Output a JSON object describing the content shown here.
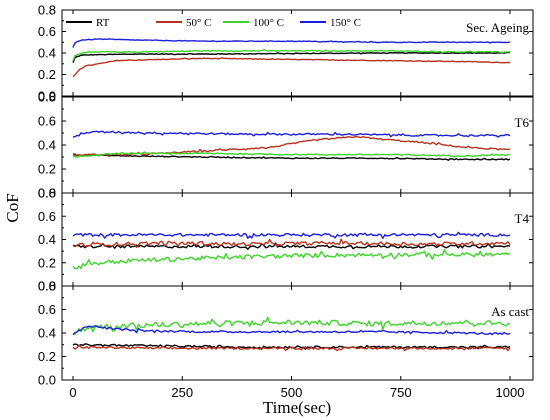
{
  "chart_data": {
    "type": "line",
    "xlabel": "Time(sec)",
    "ylabel": "CoF",
    "xlim": [
      0,
      1000
    ],
    "ylim": [
      0,
      0.8
    ],
    "x_ticks": [
      "0",
      "250",
      "500",
      "750",
      "1000"
    ],
    "y_ticks": [
      "0.0",
      "0.2",
      "0.4",
      "0.6",
      "0.8"
    ],
    "legend": {
      "placement": "top-left",
      "entries": [
        {
          "name": "RT",
          "color": "#000000"
        },
        {
          "name": "50° C",
          "color": "#b5331f"
        },
        {
          "name": "100° C",
          "color": "#3ed42a"
        },
        {
          "name": "150° C",
          "color": "#1c1fd8"
        }
      ]
    },
    "panels": [
      {
        "label": "Sec. Ageing",
        "series": [
          {
            "name": "RT",
            "color": "#000000",
            "noise": 0.003,
            "x": [
              0,
              5,
              20,
              60,
              150,
              300,
              500,
              700,
              900,
              1000
            ],
            "y": [
              0.31,
              0.36,
              0.38,
              0.385,
              0.39,
              0.39,
              0.395,
              0.4,
              0.4,
              0.4
            ]
          },
          {
            "name": "50° C",
            "color": "#b5331f",
            "noise": 0.003,
            "x": [
              0,
              5,
              15,
              30,
              60,
              100,
              200,
              300,
              500,
              700,
              900,
              1000
            ],
            "y": [
              0.18,
              0.2,
              0.25,
              0.28,
              0.3,
              0.33,
              0.34,
              0.35,
              0.34,
              0.33,
              0.32,
              0.31
            ]
          },
          {
            "name": "100° C",
            "color": "#3ed42a",
            "noise": 0.004,
            "x": [
              0,
              5,
              20,
              60,
              150,
              300,
              500,
              700,
              900,
              1000
            ],
            "y": [
              0.33,
              0.38,
              0.4,
              0.41,
              0.41,
              0.42,
              0.42,
              0.42,
              0.41,
              0.41
            ]
          },
          {
            "name": "150° C",
            "color": "#1c1fd8",
            "noise": 0.003,
            "x": [
              0,
              5,
              20,
              60,
              150,
              300,
              500,
              700,
              900,
              1000
            ],
            "y": [
              0.45,
              0.5,
              0.52,
              0.53,
              0.52,
              0.51,
              0.51,
              0.5,
              0.5,
              0.5
            ]
          }
        ]
      },
      {
        "label": "T6",
        "series": [
          {
            "name": "RT",
            "color": "#000000",
            "noise": 0.004,
            "x": [
              0,
              100,
              300,
              500,
              700,
              900,
              1000
            ],
            "y": [
              0.32,
              0.31,
              0.3,
              0.29,
              0.29,
              0.28,
              0.28
            ]
          },
          {
            "name": "50° C",
            "color": "#b5331f",
            "noise": 0.006,
            "x": [
              0,
              100,
              200,
              300,
              450,
              550,
              650,
              700,
              800,
              900,
              1000
            ],
            "y": [
              0.32,
              0.32,
              0.33,
              0.35,
              0.38,
              0.44,
              0.47,
              0.45,
              0.42,
              0.38,
              0.36
            ]
          },
          {
            "name": "100° C",
            "color": "#3ed42a",
            "noise": 0.005,
            "x": [
              0,
              100,
              300,
              500,
              700,
              900,
              1000
            ],
            "y": [
              0.3,
              0.33,
              0.33,
              0.32,
              0.32,
              0.31,
              0.32
            ]
          },
          {
            "name": "150° C",
            "color": "#1c1fd8",
            "noise": 0.007,
            "x": [
              0,
              20,
              60,
              200,
              400,
              600,
              800,
              1000
            ],
            "y": [
              0.46,
              0.5,
              0.51,
              0.5,
              0.49,
              0.49,
              0.48,
              0.48
            ]
          }
        ]
      },
      {
        "label": "T4",
        "series": [
          {
            "name": "RT",
            "color": "#000000",
            "noise": 0.012,
            "x": [
              0,
              200,
              400,
              600,
              800,
              1000
            ],
            "y": [
              0.34,
              0.34,
              0.34,
              0.34,
              0.34,
              0.34
            ]
          },
          {
            "name": "50° C",
            "color": "#b5331f",
            "noise": 0.015,
            "x": [
              0,
              200,
              400,
              600,
              800,
              1000
            ],
            "y": [
              0.35,
              0.37,
              0.36,
              0.37,
              0.36,
              0.37
            ]
          },
          {
            "name": "100° C",
            "color": "#3ed42a",
            "noise": 0.018,
            "x": [
              0,
              50,
              150,
              300,
              500,
              700,
              900,
              1000
            ],
            "y": [
              0.16,
              0.2,
              0.22,
              0.24,
              0.26,
              0.27,
              0.27,
              0.27
            ]
          },
          {
            "name": "150° C",
            "color": "#1c1fd8",
            "noise": 0.012,
            "x": [
              0,
              200,
              400,
              600,
              800,
              1000
            ],
            "y": [
              0.44,
              0.44,
              0.44,
              0.44,
              0.44,
              0.44
            ]
          }
        ]
      },
      {
        "label": "As cast",
        "series": [
          {
            "name": "RT",
            "color": "#000000",
            "noise": 0.008,
            "x": [
              0,
              200,
              400,
              600,
              800,
              1000
            ],
            "y": [
              0.3,
              0.29,
              0.28,
              0.28,
              0.28,
              0.28
            ]
          },
          {
            "name": "50° C",
            "color": "#b5331f",
            "noise": 0.008,
            "x": [
              0,
              200,
              400,
              600,
              800,
              1000
            ],
            "y": [
              0.28,
              0.27,
              0.27,
              0.27,
              0.27,
              0.27
            ]
          },
          {
            "name": "100° C",
            "color": "#3ed42a",
            "noise": 0.022,
            "x": [
              0,
              10,
              40,
              100,
              300,
              500,
              700,
              900,
              1000
            ],
            "y": [
              0.38,
              0.42,
              0.45,
              0.46,
              0.48,
              0.49,
              0.48,
              0.49,
              0.48
            ]
          },
          {
            "name": "150° C",
            "color": "#1c1fd8",
            "noise": 0.008,
            "x": [
              0,
              10,
              40,
              80,
              150,
              300,
              500,
              700,
              900,
              1000
            ],
            "y": [
              0.38,
              0.42,
              0.46,
              0.44,
              0.42,
              0.41,
              0.41,
              0.41,
              0.4,
              0.39
            ]
          }
        ]
      }
    ]
  }
}
